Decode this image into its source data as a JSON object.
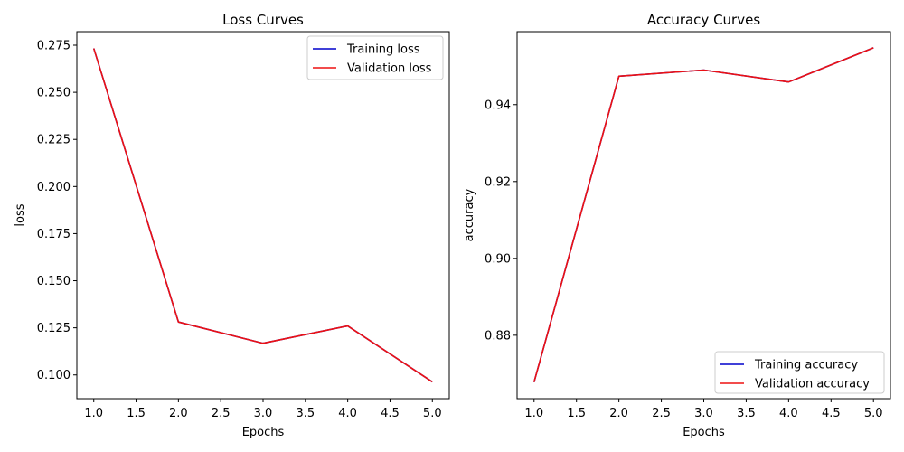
{
  "chart_data": [
    {
      "type": "line",
      "title": "Loss Curves",
      "xlabel": "Epochs",
      "ylabel": "loss",
      "xlim": [
        0.8,
        5.2
      ],
      "ylim": [
        0.0874,
        0.2822
      ],
      "xticks": [
        1.0,
        1.5,
        2.0,
        2.5,
        3.0,
        3.5,
        4.0,
        4.5,
        5.0
      ],
      "xtick_labels": [
        "1.0",
        "1.5",
        "2.0",
        "2.5",
        "3.0",
        "3.5",
        "4.0",
        "4.5",
        "5.0"
      ],
      "yticks": [
        0.1,
        0.125,
        0.15,
        0.175,
        0.2,
        0.225,
        0.25,
        0.275
      ],
      "ytick_labels": [
        "0.100",
        "0.125",
        "0.150",
        "0.175",
        "0.200",
        "0.225",
        "0.250",
        "0.275"
      ],
      "x": [
        1,
        2,
        3,
        4,
        5
      ],
      "series": [
        {
          "name": "Training loss",
          "color": "#0000cc",
          "values": [
            0.2733,
            0.1281,
            0.1168,
            0.126,
            0.0963
          ]
        },
        {
          "name": "Validation loss",
          "color": "#ee1111",
          "values": [
            0.2733,
            0.1281,
            0.1168,
            0.126,
            0.0963
          ]
        }
      ],
      "legend_position": "top-right",
      "grid": false
    },
    {
      "type": "line",
      "title": "Accuracy Curves",
      "xlabel": "Epochs",
      "ylabel": "accuracy",
      "xlim": [
        0.8,
        5.2
      ],
      "ylim": [
        0.8635,
        0.959
      ],
      "xticks": [
        1.0,
        1.5,
        2.0,
        2.5,
        3.0,
        3.5,
        4.0,
        4.5,
        5.0
      ],
      "xtick_labels": [
        "1.0",
        "1.5",
        "2.0",
        "2.5",
        "3.0",
        "3.5",
        "4.0",
        "4.5",
        "5.0"
      ],
      "yticks": [
        0.88,
        0.9,
        0.92,
        0.94
      ],
      "ytick_labels": [
        "0.88",
        "0.90",
        "0.92",
        "0.94"
      ],
      "x": [
        1,
        2,
        3,
        4,
        5
      ],
      "series": [
        {
          "name": "Training accuracy",
          "color": "#0000cc",
          "values": [
            0.8678,
            0.9474,
            0.949,
            0.9459,
            0.9548
          ]
        },
        {
          "name": "Validation accuracy",
          "color": "#ee1111",
          "values": [
            0.8678,
            0.9474,
            0.949,
            0.9459,
            0.9548
          ]
        }
      ],
      "legend_position": "bottom-right",
      "grid": false
    }
  ]
}
